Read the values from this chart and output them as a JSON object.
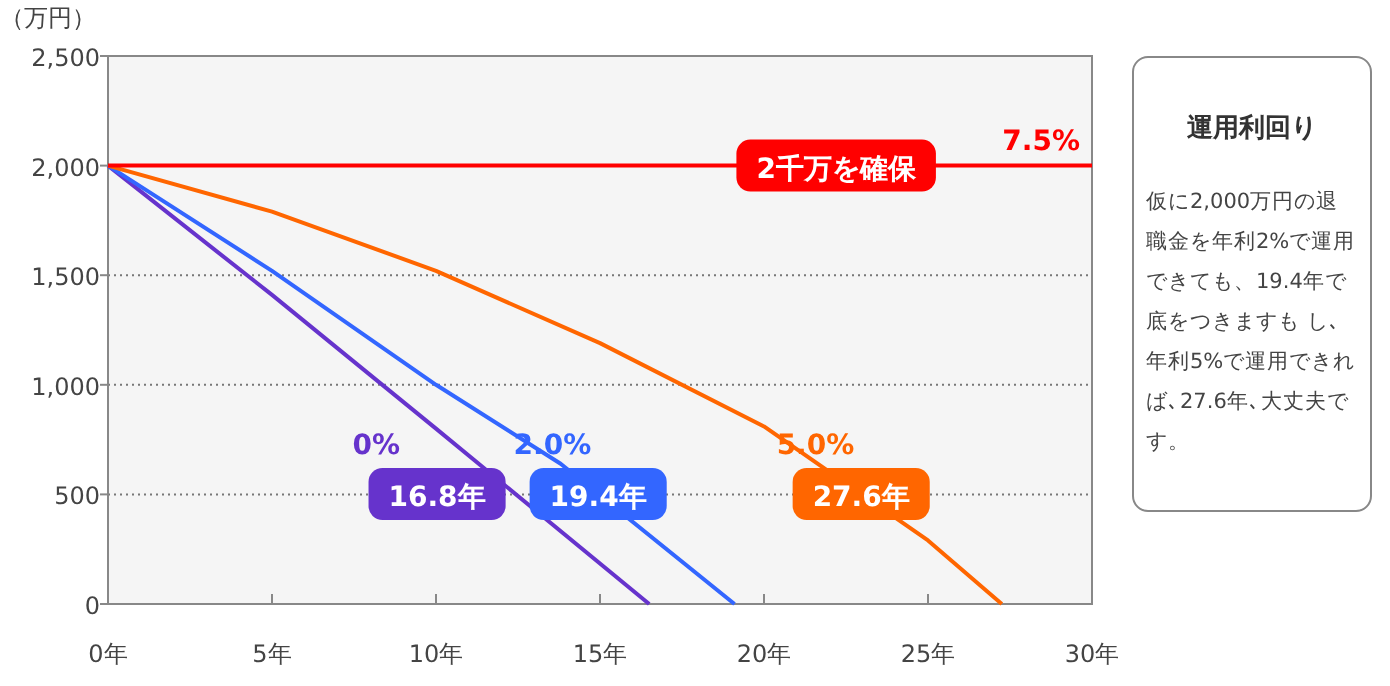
{
  "chart_data": [
    {
      "type": "line",
      "ylabel": "（万円）",
      "xlim": [
        0,
        30
      ],
      "ylim": [
        0,
        2500
      ],
      "xticks": [
        {
          "value": 0,
          "label": "0年"
        },
        {
          "value": 5,
          "label": "5年"
        },
        {
          "value": 10,
          "label": "10年"
        },
        {
          "value": 15,
          "label": "15年"
        },
        {
          "value": 20,
          "label": "20年"
        },
        {
          "value": 25,
          "label": "25年"
        },
        {
          "value": 30,
          "label": "30年"
        }
      ],
      "yticks": [
        {
          "value": 0,
          "label": "0"
        },
        {
          "value": 500,
          "label": "500"
        },
        {
          "value": 1000,
          "label": "1,000"
        },
        {
          "value": 1500,
          "label": "1,500"
        },
        {
          "value": 2000,
          "label": "2,000"
        },
        {
          "value": 2500,
          "label": "2,500"
        }
      ],
      "grid": "y",
      "marker": "none",
      "line_style": "solid",
      "series": [
        {
          "name": "0%",
          "color": "#6633cc",
          "x": [
            0,
            5,
            10,
            16.5
          ],
          "values": [
            2000,
            1410,
            800,
            0
          ]
        },
        {
          "name": "2.0%",
          "color": "#3366ff",
          "x": [
            0,
            5,
            10,
            13.8,
            19.1
          ],
          "values": [
            2000,
            1520,
            1000,
            640,
            0
          ]
        },
        {
          "name": "5.0%",
          "color": "#ff6600",
          "x": [
            0,
            5,
            10,
            15,
            20,
            25,
            27.25
          ],
          "values": [
            2000,
            1790,
            1520,
            1190,
            810,
            290,
            0
          ]
        },
        {
          "name": "7.5%",
          "color": "#ff0000",
          "x": [
            0,
            30
          ],
          "values": [
            2000,
            2000
          ]
        }
      ],
      "annotations": [
        "16.8年",
        "19.4年",
        "27.6年",
        "2千万を確保"
      ]
    },
    {
      "type": "other",
      "title": "運用利回り",
      "annotations": [
        "仮に2,000万円の退職金を年利2%で運用できても、19.4年で底をつきますも し､年利5%で運用できれば､27.6年､大丈夫です。"
      ]
    }
  ]
}
